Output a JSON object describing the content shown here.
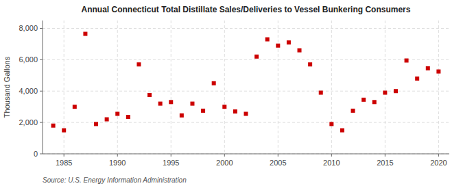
{
  "chart_data": {
    "type": "scatter",
    "title": "Annual Connecticut Total Distillate Sales/Deliveries to Vessel Bunkering Consumers",
    "ylabel": "Thousand Gallons",
    "source": "Source: U.S. Energy Information Administration",
    "x": [
      1984,
      1985,
      1986,
      1987,
      1988,
      1989,
      1990,
      1991,
      1992,
      1993,
      1994,
      1995,
      1996,
      1997,
      1998,
      1999,
      2000,
      2001,
      2002,
      2003,
      2004,
      2005,
      2006,
      2007,
      2008,
      2009,
      2010,
      2011,
      2012,
      2013,
      2014,
      2015,
      2016,
      2017,
      2018,
      2019,
      2020
    ],
    "values": [
      1800,
      1500,
      3000,
      7650,
      1900,
      2200,
      2550,
      2350,
      5700,
      3750,
      3200,
      3300,
      2450,
      3200,
      2750,
      4500,
      3000,
      2700,
      2550,
      6200,
      7300,
      6900,
      7100,
      6600,
      5700,
      3900,
      1900,
      1500,
      2750,
      3450,
      3300,
      3900,
      4000,
      5950,
      4800,
      5450,
      5250
    ],
    "color": "#cc0000",
    "marker": "square",
    "xlim": [
      1983,
      2021
    ],
    "ylim": [
      0,
      8500
    ],
    "xticks": [
      1985,
      1990,
      1995,
      2000,
      2005,
      2010,
      2015,
      2020
    ],
    "yticks": [
      0,
      {
        "value": 2000,
        "label": "2,000"
      },
      {
        "value": 4000,
        "label": "4,000"
      },
      {
        "value": 6000,
        "label": "6,000"
      },
      {
        "value": 8000,
        "label": "8,000"
      }
    ],
    "grid": true
  }
}
